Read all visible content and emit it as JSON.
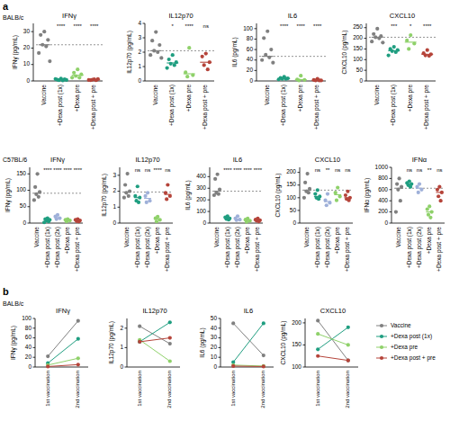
{
  "figure": {
    "panel_labels": [
      "a",
      "b"
    ],
    "row_labels": [
      "BALB/c",
      "C57BL/6",
      "BALB/c"
    ]
  },
  "chart_data": [
    {
      "type": "strip",
      "title": "IFNγ",
      "ylabel": "IFNγ (pg/mL)",
      "categories": [
        "Vaccine",
        "+Dexa post (1x)",
        "+Dexa pre",
        "+Dexa post + pre"
      ],
      "colors": [
        "#808080",
        "#1f9e80",
        "#8fd16a",
        "#b5443a"
      ],
      "values": [
        [
          30,
          28,
          25,
          22,
          21,
          17,
          12
        ],
        [
          1.5,
          0.8,
          1,
          0.5,
          0.3,
          1.2,
          0.6
        ],
        [
          7,
          5,
          4,
          3,
          2,
          2
        ],
        [
          1,
          0.5,
          1.2,
          0.8,
          0.4,
          0.6
        ]
      ],
      "medians": [
        22,
        0.8,
        3.5,
        0.7
      ],
      "annotations": [
        null,
        "****",
        "****",
        "****"
      ],
      "ylim": [
        0,
        35
      ],
      "yticks": [
        0,
        10,
        20,
        30
      ]
    },
    {
      "type": "strip",
      "title": "IL12p70",
      "ylabel": "IL12p70 (pg/mL)",
      "categories": [
        "Vaccine",
        "+Dexa post (1x)",
        "+Dexa pre",
        "+Dexa post + pre"
      ],
      "colors": [
        "#808080",
        "#1f9e80",
        "#8fd16a",
        "#b5443a"
      ],
      "values": [
        [
          3.4,
          2.8,
          2.5,
          2.1,
          2.0,
          1.8,
          1.6
        ],
        [
          1.8,
          1.5,
          1.3,
          1.2,
          1.1,
          0.9
        ],
        [
          2.3,
          0.6,
          0.4,
          0.3
        ],
        [
          1.9,
          1.7,
          1.3,
          1.1,
          0.8
        ]
      ],
      "medians": [
        2.1,
        1.25,
        0.5,
        1.3
      ],
      "annotations": [
        null,
        "*",
        "****",
        "ns"
      ],
      "ylim": [
        0,
        4
      ],
      "yticks": [
        0,
        1,
        2,
        3,
        4
      ]
    },
    {
      "type": "strip",
      "title": "IL6",
      "ylabel": "IL6 (pg/mL)",
      "categories": [
        "Vaccine",
        "+Dexa post (1x)",
        "+Dexa pre",
        "+Dexa post + pre"
      ],
      "colors": [
        "#808080",
        "#1f9e80",
        "#8fd16a",
        "#b5443a"
      ],
      "values": [
        [
          95,
          82,
          60,
          50,
          45,
          40,
          35
        ],
        [
          8,
          6,
          5,
          4,
          4,
          3
        ],
        [
          10,
          3,
          2,
          1
        ],
        [
          4,
          2,
          1,
          1,
          1
        ]
      ],
      "medians": [
        47,
        4.5,
        2.5,
        1
      ],
      "annotations": [
        null,
        "****",
        "****",
        "****"
      ],
      "ylim": [
        0,
        110
      ],
      "yticks": [
        0,
        20,
        40,
        60,
        80,
        100
      ]
    },
    {
      "type": "strip",
      "title": "CXCL10",
      "ylabel": "CXCL10 (pg/mL)",
      "categories": [
        "Vaccine",
        "+Dexa post (1x)",
        "+Dexa pre",
        "+Dexa post + pre"
      ],
      "colors": [
        "#808080",
        "#1f9e80",
        "#8fd16a",
        "#b5443a"
      ],
      "values": [
        [
          245,
          220,
          210,
          205,
          200,
          185,
          180
        ],
        [
          160,
          150,
          145,
          140,
          135,
          120
        ],
        [
          215,
          190,
          175,
          150
        ],
        [
          145,
          130,
          125,
          120,
          118
        ]
      ],
      "medians": [
        205,
        142,
        182,
        125
      ],
      "annotations": [
        null,
        "***",
        "*",
        "****"
      ],
      "ylim": [
        0,
        270
      ],
      "yticks": [
        0,
        50,
        100,
        150,
        200,
        250
      ]
    },
    {
      "type": "strip",
      "title": "IFNγ",
      "ylabel": "IFNγ (pg/mL)",
      "categories": [
        "Vaccine",
        "+Dexa post (1x)",
        "+Dexa post (2x)",
        "+Dexa pre",
        "+Dexa post + pre"
      ],
      "colors": [
        "#808080",
        "#1f9e80",
        "#9fb0d9",
        "#8fd16a",
        "#b5443a"
      ],
      "values": [
        [
          150,
          110,
          95,
          88,
          80,
          70
        ],
        [
          15,
          12,
          10,
          8,
          5,
          2
        ],
        [
          25,
          20,
          15,
          12
        ],
        [
          12,
          10,
          8,
          5
        ],
        [
          12,
          10,
          8,
          6,
          5
        ]
      ],
      "medians": [
        91,
        9,
        17,
        9,
        8
      ],
      "annotations": [
        null,
        "****",
        "****",
        "****",
        "****"
      ],
      "ylim": [
        0,
        170
      ],
      "yticks": [
        0,
        50,
        100,
        150
      ]
    },
    {
      "type": "strip",
      "title": "IL12p70",
      "ylabel": "IL12p70 (pg/mL)",
      "categories": [
        "Vaccine",
        "+Dexa post (1x)",
        "+Dexa post (2x)",
        "+Dexa pre",
        "+Dexa post + pre"
      ],
      "colors": [
        "#808080",
        "#1f9e80",
        "#9fb0d9",
        "#8fd16a",
        "#b5443a"
      ],
      "values": [
        [
          3.1,
          2.4,
          2.0,
          1.9,
          1.7,
          1.6
        ],
        [
          2.3,
          1.7,
          1.6,
          1.4,
          1.3
        ],
        [
          1.9,
          1.7,
          1.4,
          1.3
        ],
        [
          0.4,
          0.3,
          0.2,
          0.1
        ],
        [
          2.4,
          1.9,
          1.7,
          1.5
        ]
      ],
      "medians": [
        1.95,
        1.6,
        1.55,
        0.25,
        1.8
      ],
      "annotations": [
        null,
        "ns",
        "ns",
        "****",
        "ns"
      ],
      "ylim": [
        0,
        3.5
      ],
      "yticks": [
        0,
        1,
        2,
        3
      ]
    },
    {
      "type": "strip",
      "title": "IL6",
      "ylabel": "IL6 (pg/mL)",
      "categories": [
        "Vaccine",
        "+Dexa post (1x)",
        "+Dexa post (2x)",
        "+Dexa pre",
        "+Dexa post + pre"
      ],
      "colors": [
        "#808080",
        "#1f9e80",
        "#9fb0d9",
        "#8fd16a",
        "#b5443a"
      ],
      "values": [
        [
          420,
          380,
          290,
          260,
          250,
          240
        ],
        [
          60,
          50,
          40,
          35,
          30
        ],
        [
          60,
          40,
          30,
          25
        ],
        [
          40,
          30,
          20,
          10
        ],
        [
          40,
          30,
          25,
          20,
          15
        ]
      ],
      "medians": [
        275,
        40,
        35,
        25,
        25
      ],
      "annotations": [
        null,
        "****",
        "****",
        "****",
        "****"
      ],
      "ylim": [
        0,
        480
      ],
      "yticks": [
        0,
        100,
        200,
        300,
        400
      ]
    },
    {
      "type": "strip",
      "title": "CXCL10",
      "ylabel": "CXCL10 (pg/mL)",
      "categories": [
        "Vaccine",
        "+Dexa post (1x)",
        "+Dexa post (2x)",
        "+Dexa pre",
        "+Dexa post + pre"
      ],
      "colors": [
        "#808080",
        "#1f9e80",
        "#9fb0d9",
        "#8fd16a",
        "#b5443a"
      ],
      "values": [
        [
          195,
          160,
          135,
          125,
          120,
          100
        ],
        [
          130,
          115,
          105,
          100,
          95
        ],
        [
          115,
          90,
          80,
          70
        ],
        [
          140,
          120,
          105,
          90
        ],
        [
          125,
          110,
          100,
          95,
          90
        ]
      ],
      "medians": [
        130,
        105,
        85,
        112,
        100
      ],
      "annotations": [
        null,
        "ns",
        "**",
        "ns",
        "ns"
      ],
      "ylim": [
        0,
        220
      ],
      "yticks": [
        0,
        50,
        100,
        150,
        200
      ]
    },
    {
      "type": "strip",
      "title": "IFNα",
      "ylabel": "IFNα (pg/mL)",
      "categories": [
        "Vaccine",
        "+Dexa post (1x)",
        "+Dexa post (2x)",
        "+Dexa pre",
        "+Dexa post + pre"
      ],
      "colors": [
        "#808080",
        "#1f9e80",
        "#9fb0d9",
        "#8fd16a",
        "#b5443a"
      ],
      "values": [
        [
          800,
          700,
          650,
          600,
          400,
          200
        ],
        [
          750,
          720,
          700,
          680,
          650
        ],
        [
          700,
          650,
          600,
          550
        ],
        [
          300,
          250,
          200,
          150,
          100
        ],
        [
          650,
          600,
          550,
          480,
          400
        ]
      ],
      "medians": [
        625,
        700,
        625,
        200,
        550
      ],
      "annotations": [
        null,
        "ns",
        "ns",
        "**",
        "ns"
      ],
      "ylim": [
        0,
        1000
      ],
      "yticks": [
        0,
        200,
        400,
        600,
        800,
        1000
      ]
    },
    {
      "type": "line",
      "title": "IFNγ",
      "ylabel": "IFNγ (pg/mL)",
      "marker": "circle",
      "categories": [
        "1st vaccination",
        "2nd vaccination"
      ],
      "series": [
        {
          "color": "#808080",
          "values": [
            22,
            95
          ]
        },
        {
          "color": "#1f9e80",
          "values": [
            8,
            58
          ]
        },
        {
          "color": "#8fd16a",
          "values": [
            4,
            18
          ]
        },
        {
          "color": "#b5443a",
          "values": [
            1,
            5
          ]
        }
      ],
      "ylim": [
        0,
        100
      ],
      "yticks": [
        0,
        20,
        40,
        60,
        80,
        100
      ]
    },
    {
      "type": "line",
      "title": "IL12p70",
      "ylabel": "IL12p70 (pg/mL)",
      "marker": "circle",
      "categories": [
        "1st vaccination",
        "2nd vaccination"
      ],
      "series": [
        {
          "color": "#808080",
          "values": [
            2.1,
            1.2
          ]
        },
        {
          "color": "#1f9e80",
          "values": [
            1.3,
            2.3
          ]
        },
        {
          "color": "#8fd16a",
          "values": [
            1.4,
            0.3
          ]
        },
        {
          "color": "#b5443a",
          "values": [
            1.3,
            1.5
          ]
        }
      ],
      "ylim": [
        0,
        2.5
      ],
      "yticks": [
        0,
        1,
        2
      ]
    },
    {
      "type": "line",
      "title": "IL6",
      "ylabel": "IL6 (pg/mL)",
      "marker": "circle",
      "categories": [
        "1st vaccination",
        "2nd vaccination"
      ],
      "series": [
        {
          "color": "#808080",
          "values": [
            45,
            12
          ]
        },
        {
          "color": "#1f9e80",
          "values": [
            5,
            45
          ]
        },
        {
          "color": "#8fd16a",
          "values": [
            2,
            1
          ]
        },
        {
          "color": "#b5443a",
          "values": [
            1,
            0.5
          ]
        }
      ],
      "ylim": [
        0,
        50
      ],
      "yticks": [
        0,
        10,
        20,
        30,
        40,
        50
      ]
    },
    {
      "type": "line",
      "title": "CXCL10",
      "ylabel": "CXCL10 (pg/mL)",
      "marker": "circle",
      "legend": "right",
      "categories": [
        "1st vaccination",
        "2nd vaccination"
      ],
      "series": [
        {
          "name": "Vaccine",
          "color": "#808080",
          "values": [
            205,
            115
          ]
        },
        {
          "name": "+Dexa post (1x)",
          "color": "#1f9e80",
          "values": [
            140,
            190
          ]
        },
        {
          "name": "+Dexa pre",
          "color": "#8fd16a",
          "values": [
            175,
            150
          ]
        },
        {
          "name": "+Dexa post + pre",
          "color": "#b5443a",
          "values": [
            125,
            115
          ]
        }
      ],
      "ylim": [
        100,
        210
      ],
      "yticks": [
        100,
        150,
        200
      ]
    }
  ]
}
